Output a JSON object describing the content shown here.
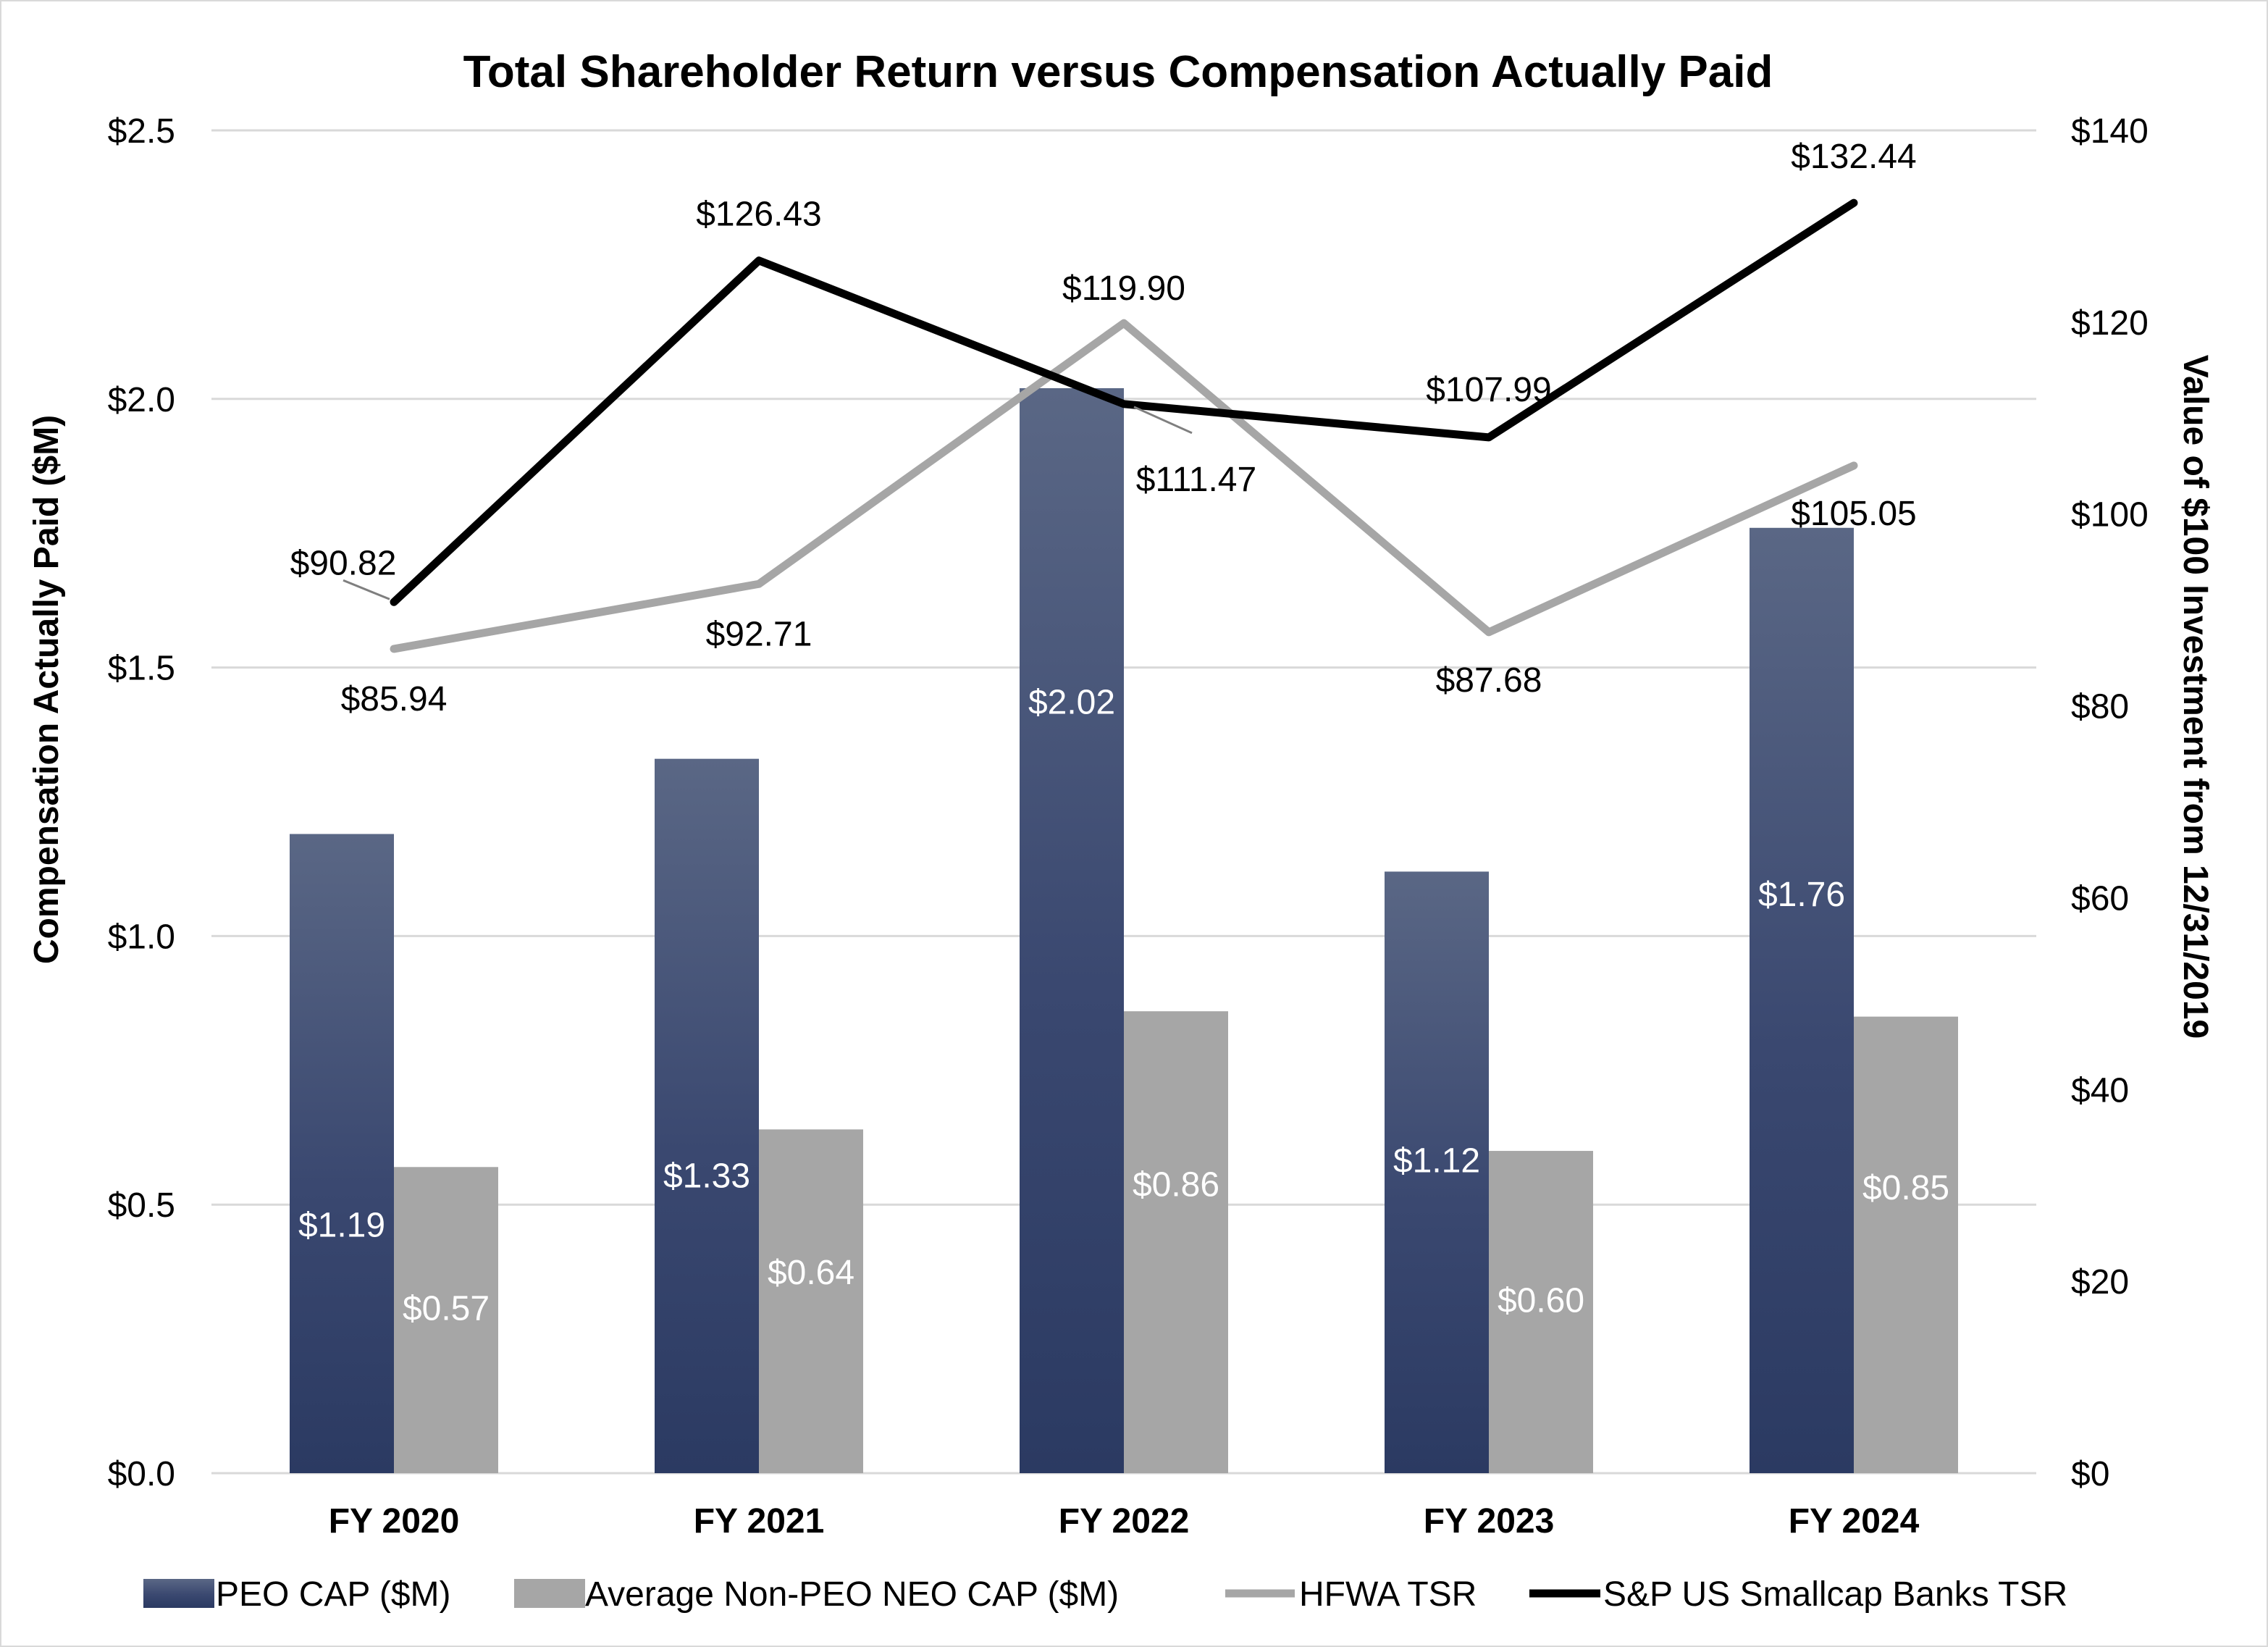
{
  "chart_data": {
    "type": "bar+line",
    "title": "Total Shareholder Return versus Compensation Actually Paid",
    "categories": [
      "FY 2020",
      "FY 2021",
      "FY 2022",
      "FY 2023",
      "FY 2024"
    ],
    "y_left": {
      "label": "Compensation Actually Paid ($M)",
      "ylim": [
        0,
        2.5
      ],
      "ticks": [
        "$0.0",
        "$0.5",
        "$1.0",
        "$1.5",
        "$2.0",
        "$2.5"
      ],
      "tick_values": [
        0,
        0.5,
        1.0,
        1.5,
        2.0,
        2.5
      ]
    },
    "y_right": {
      "label": "Value of $100 Investment from 12/31/2019",
      "ylim": [
        0,
        140
      ],
      "ticks": [
        "$0",
        "$20",
        "$40",
        "$60",
        "$80",
        "$100",
        "$120",
        "$140"
      ],
      "tick_values": [
        0,
        20,
        40,
        60,
        80,
        100,
        120,
        140
      ]
    },
    "gridlines": true,
    "legend_position": "bottom",
    "series": [
      {
        "name": "PEO CAP ($M)",
        "type": "bar",
        "axis": "left",
        "values": [
          1.19,
          1.33,
          2.02,
          1.12,
          1.76
        ],
        "labels": [
          "$1.19",
          "$1.33",
          "$2.02",
          "$1.12",
          "$1.76"
        ],
        "color": "#2e3c63",
        "color_top": "#5a6785"
      },
      {
        "name": "Average Non-PEO NEO CAP ($M)",
        "type": "bar",
        "axis": "left",
        "values": [
          0.57,
          0.64,
          0.86,
          0.6,
          0.85
        ],
        "labels": [
          "$0.57",
          "$0.64",
          "$0.86",
          "$0.60",
          "$0.85"
        ],
        "color": "#a6a6a6"
      },
      {
        "name": "HFWA TSR",
        "type": "line",
        "axis": "right",
        "values": [
          85.94,
          92.71,
          119.9,
          87.68,
          105.05
        ],
        "labels": [
          "$85.94",
          "$92.71",
          "$119.90",
          "$87.68",
          "$105.05"
        ],
        "color": "#a6a6a6"
      },
      {
        "name": "S&P US Smallcap Banks TSR",
        "type": "line",
        "axis": "right",
        "values": [
          90.82,
          126.43,
          111.47,
          107.99,
          132.44
        ],
        "labels": [
          "$90.82",
          "$126.43",
          "$111.47",
          "$107.99",
          "$132.44"
        ],
        "color": "#000000"
      }
    ]
  }
}
